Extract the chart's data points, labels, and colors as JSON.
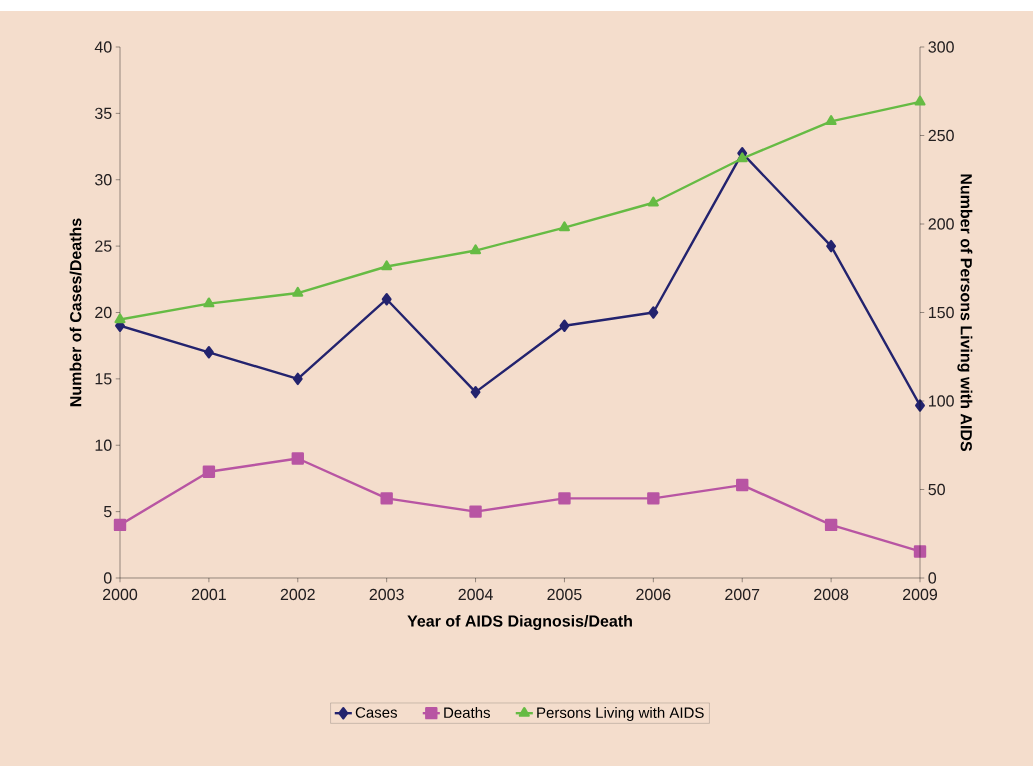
{
  "chart_data": {
    "type": "line",
    "xlabel": "Year of AIDS Diagnosis/Death",
    "ylabel": "Number of Cases/Deaths",
    "y2label": "Number of Persons Living with AIDS",
    "categories": [
      "2000",
      "2001",
      "2002",
      "2003",
      "2004",
      "2005",
      "2006",
      "2007",
      "2008",
      "2009"
    ],
    "series": [
      {
        "name": "Cases",
        "color": "#23236e",
        "marker": "diamond",
        "values": [
          19,
          17,
          15,
          21,
          14,
          19,
          20,
          32,
          25,
          13
        ]
      },
      {
        "name": "Deaths",
        "color": "#b855a3",
        "marker": "square",
        "values": [
          4,
          8,
          9,
          6,
          5,
          6,
          6,
          7,
          4,
          2
        ]
      },
      {
        "name": "Persons Living with AIDS",
        "color": "#66bb44",
        "marker": "triangle",
        "axis": "y2",
        "values": [
          146,
          155,
          161,
          176,
          185,
          198,
          212,
          237,
          258,
          269
        ]
      }
    ],
    "ylim": [
      0,
      40
    ],
    "yticks": [
      0,
      5,
      10,
      15,
      20,
      25,
      30,
      35,
      40
    ],
    "y2lim": [
      0,
      300
    ],
    "y2ticks": [
      0,
      50,
      100,
      150,
      200,
      250,
      300
    ],
    "grid": false,
    "legend": "bottom"
  }
}
